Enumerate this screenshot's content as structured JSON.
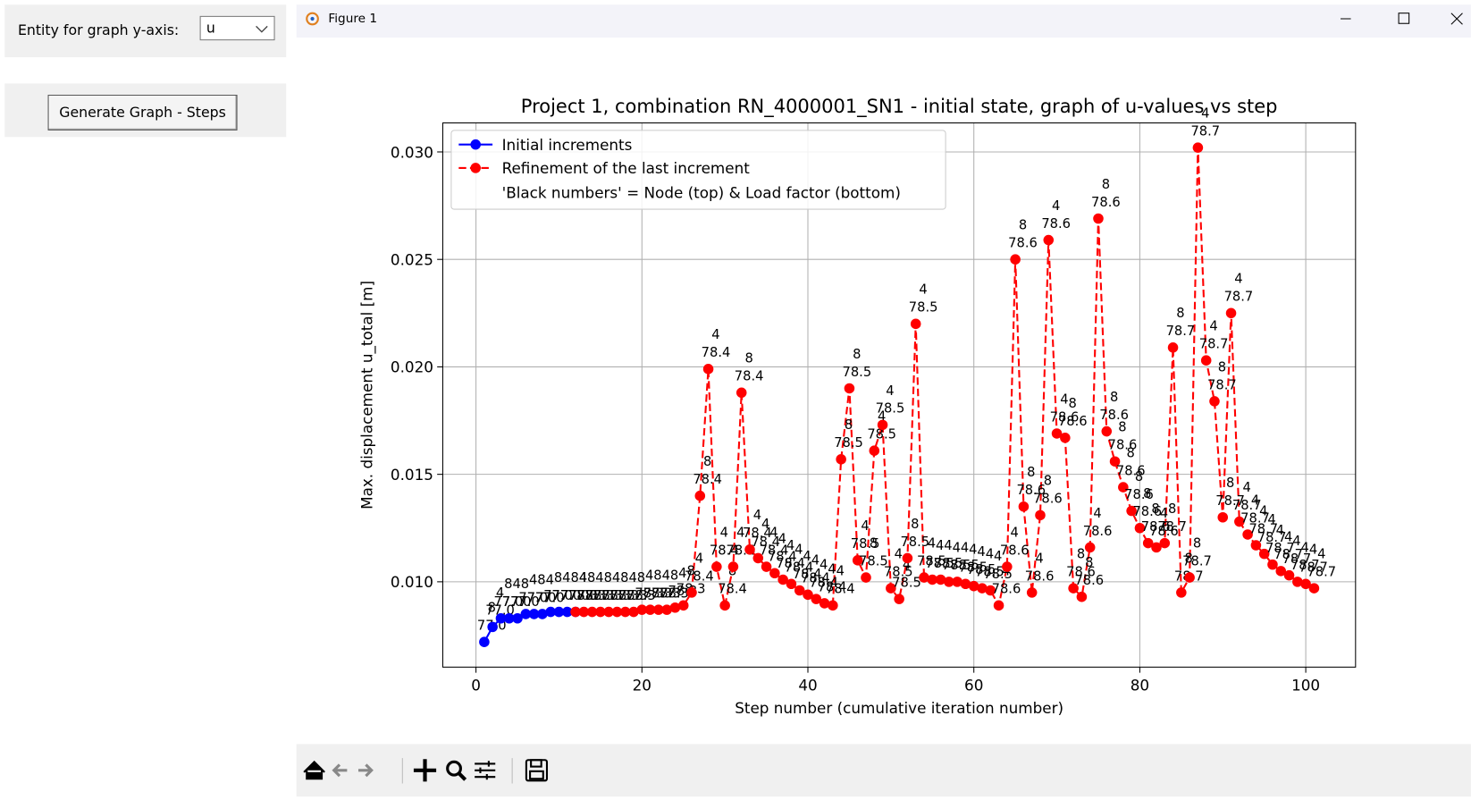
{
  "controls": {
    "entity_label": "Entity for graph y-axis:",
    "entity_value": "u",
    "button": "Generate Graph - Steps"
  },
  "window": {
    "title": "Figure 1"
  },
  "chart_data": {
    "type": "line",
    "title": "Project 1, combination RN_4000001_SN1 - initial state, graph of u-values vs step",
    "xlabel": "Step number (cumulative iteration number)",
    "ylabel": "Max. displacement u_total [m]",
    "xlim": [
      -4,
      106
    ],
    "xticks": [
      0,
      20,
      40,
      60,
      80,
      100
    ],
    "ylim": [
      0.00603,
      0.03135
    ],
    "yticks": [
      {
        "value": 0.01,
        "label": "0.010"
      },
      {
        "value": 0.015,
        "label": "0.015"
      },
      {
        "value": 0.02,
        "label": "0.020"
      },
      {
        "value": 0.025,
        "label": "0.025"
      },
      {
        "value": 0.03,
        "label": "0.030"
      }
    ],
    "grid": true,
    "legend": "upper left",
    "legend_note": "'Black numbers' = Node (top) & Load factor (bottom)",
    "series": [
      {
        "name": "Initial increments",
        "color": "#0000ff",
        "style": "solid",
        "x": [
          1,
          2,
          3,
          4,
          5,
          6,
          7,
          8,
          9,
          10,
          11,
          12
        ],
        "values": [
          0.0072,
          0.0079,
          0.0083,
          0.0083,
          0.0083,
          0.0085,
          0.0085,
          0.0085,
          0.0086,
          0.0086,
          0.0086,
          0.0086
        ],
        "nodes": [
          "8",
          "4",
          "8",
          "4",
          "8",
          "4",
          "8",
          "4",
          "8",
          "4",
          "8",
          "4"
        ],
        "load_factors": [
          "77.0",
          "77.0",
          "77.0",
          "77.0",
          "77.0",
          "77.0",
          "77.0",
          "77.0",
          "77.0",
          "77.0",
          "77.0",
          "77.0"
        ]
      },
      {
        "name": "Refinement of the last increment",
        "color": "#ff0000",
        "style": "dashed",
        "x": [
          12,
          13,
          14,
          15,
          16,
          17,
          18,
          19,
          20,
          21,
          22,
          23,
          24,
          25,
          26,
          27,
          28,
          29,
          30,
          31,
          32,
          33,
          34,
          35,
          36,
          37,
          38,
          39,
          40,
          41,
          42,
          43,
          44,
          45,
          46,
          47,
          48,
          49,
          50,
          51,
          52,
          53,
          54,
          55,
          56,
          57,
          58,
          59,
          60,
          61,
          62,
          63,
          64,
          65,
          66,
          67,
          68,
          69,
          70,
          71,
          72,
          73,
          74,
          75,
          76,
          77,
          78,
          79,
          80,
          81,
          82,
          83,
          84,
          85,
          86,
          87,
          88,
          89,
          90,
          91,
          92,
          93,
          94,
          95,
          96,
          97,
          98,
          99,
          100,
          101
        ],
        "values": [
          0.0086,
          0.0086,
          0.0086,
          0.0086,
          0.0086,
          0.0086,
          0.0086,
          0.0086,
          0.0087,
          0.0087,
          0.0087,
          0.0087,
          0.0088,
          0.0089,
          0.0095,
          0.014,
          0.0199,
          0.0107,
          0.0089,
          0.0107,
          0.0188,
          0.0115,
          0.0111,
          0.0107,
          0.0104,
          0.0101,
          0.0099,
          0.0096,
          0.0094,
          0.0092,
          0.009,
          0.0089,
          0.0157,
          0.019,
          0.011,
          0.0102,
          0.0161,
          0.0173,
          0.0097,
          0.0092,
          0.0111,
          0.022,
          0.0102,
          0.0101,
          0.0101,
          0.01,
          0.01,
          0.0099,
          0.0098,
          0.0097,
          0.0096,
          0.0089,
          0.0107,
          0.025,
          0.0135,
          0.0095,
          0.0131,
          0.0259,
          0.0169,
          0.0167,
          0.0097,
          0.0093,
          0.0116,
          0.0269,
          0.017,
          0.0156,
          0.0144,
          0.0133,
          0.0125,
          0.0118,
          0.0116,
          0.0118,
          0.0209,
          0.0095,
          0.0102,
          0.0302,
          0.0203,
          0.0184,
          0.013,
          0.0225,
          0.0128,
          0.0122,
          0.0117,
          0.0113,
          0.0108,
          0.0105,
          0.0103,
          0.01,
          0.0099,
          0.0097
        ],
        "nodes": [
          "4",
          "8",
          "4",
          "8",
          "4",
          "8",
          "4",
          "8",
          "4",
          "8",
          "4",
          "8",
          "4",
          "8",
          "4",
          "8",
          "4",
          "4",
          "8",
          "4",
          "8",
          "4",
          "4",
          "4",
          "4",
          "4",
          "4",
          "4",
          "4",
          "4",
          "4",
          "4",
          "8",
          "8",
          "4",
          "8",
          "4",
          "4",
          "4",
          "4",
          "8",
          "4",
          "4",
          "4",
          "4",
          "4",
          "4",
          "4",
          "4",
          "4",
          "4",
          "4",
          "4",
          "8",
          "8",
          "4",
          "8",
          "4",
          "4",
          "8",
          "8",
          "8",
          "4",
          "8",
          "8",
          "8",
          "8",
          "8",
          "8",
          "8",
          "4",
          "8",
          "8",
          "8",
          "8",
          "4",
          "4",
          "8",
          "8",
          "4",
          "4",
          "4",
          "4",
          "4",
          "4",
          "4",
          "4",
          "4",
          "4",
          "4"
        ],
        "load_factors": [
          "78.3",
          "78.3",
          "78.3",
          "78.3",
          "78.3",
          "78.3",
          "78.3",
          "78.3",
          "78.3",
          "78.3",
          "78.3",
          "78.3",
          "78.3",
          "78.3",
          "78.4",
          "78.4",
          "78.4",
          "78.4",
          "78.4",
          "78.4",
          "78.4",
          "78.4",
          "78.4",
          "78.4",
          "78.4",
          "78.4",
          "78.4",
          "78.4",
          "78.4",
          "78.4",
          "78.4",
          "78.4",
          "78.5",
          "78.5",
          "78.5",
          "78.5",
          "78.5",
          "78.5",
          "78.5",
          "78.5",
          "78.5",
          "78.5",
          "78.5",
          "78.5",
          "78.5",
          "78.5",
          "78.5",
          "78.5",
          "78.5",
          "78.5",
          "78.5",
          "78.6",
          "78.6",
          "78.6",
          "78.6",
          "78.6",
          "78.6",
          "78.6",
          "78.6",
          "78.6",
          "78.6",
          "78.6",
          "78.6",
          "78.6",
          "78.6",
          "78.6",
          "78.6",
          "78.6",
          "78.6",
          "78.6",
          "78.6",
          "78.7",
          "78.7",
          "78.7",
          "78.7",
          "78.7",
          "78.7",
          "78.7",
          "78.7",
          "78.7",
          "78.7",
          "78.7",
          "78.7",
          "78.7",
          "78.7",
          "78.7",
          "78.7",
          "78.7",
          "78.7",
          "78.7"
        ]
      }
    ]
  }
}
